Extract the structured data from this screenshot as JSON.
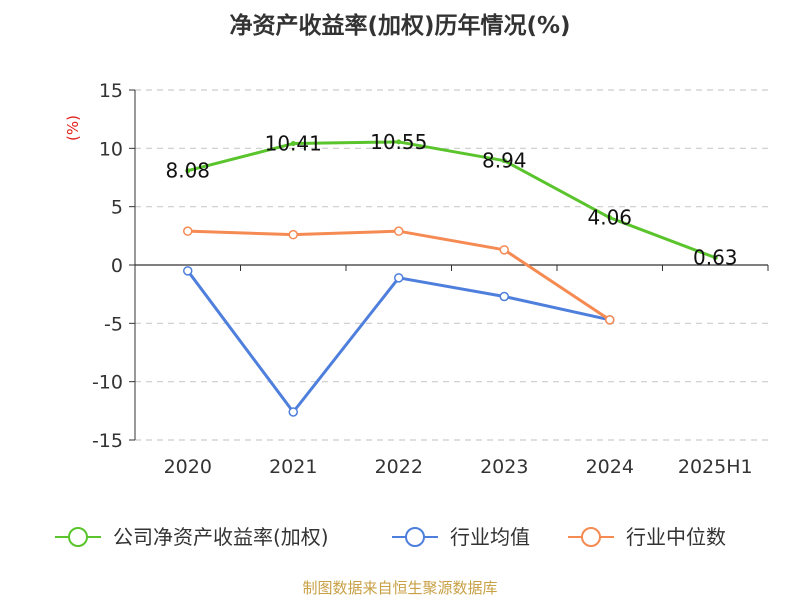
{
  "chart_data": {
    "type": "line",
    "title": "净资产收益率(加权)历年情况(%)",
    "unit_label": "(%)",
    "categories": [
      "2020",
      "2021",
      "2022",
      "2023",
      "2024",
      "2025H1"
    ],
    "y_ticks": [
      "15",
      "10",
      "5",
      "0",
      "-5",
      "-10",
      "-15"
    ],
    "ylim": [
      -15,
      15
    ],
    "grid": true,
    "legend_position": "bottom",
    "series": [
      {
        "name": "公司净资产收益率(加权)",
        "color": "#5ac42c",
        "values": [
          8.08,
          10.41,
          10.55,
          8.94,
          4.06,
          0.63
        ],
        "labels": [
          "8.08",
          "10.41",
          "10.55",
          "8.94",
          "4.06",
          "0.63"
        ]
      },
      {
        "name": "行业均值",
        "color": "#4f7fdc",
        "values": [
          -0.5,
          -12.6,
          -1.1,
          -2.7,
          -4.7,
          null
        ]
      },
      {
        "name": "行业中位数",
        "color": "#f58a52",
        "values": [
          2.9,
          2.6,
          2.9,
          1.3,
          -4.7,
          null
        ]
      }
    ],
    "source": "制图数据来自恒生聚源数据库"
  }
}
